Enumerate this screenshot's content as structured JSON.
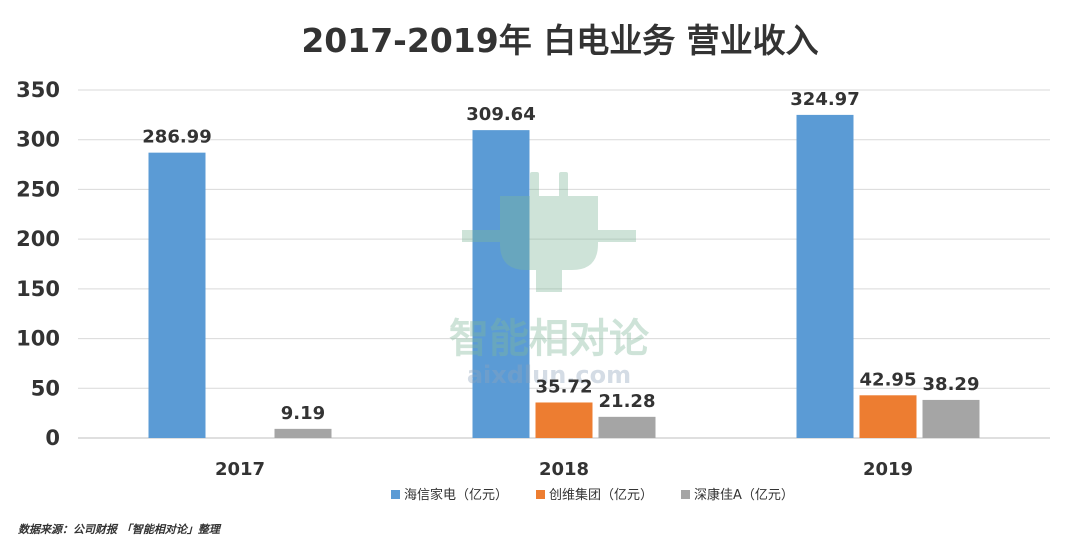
{
  "chart_data": {
    "type": "bar",
    "title": "2017-2019年 白电业务 营业收入",
    "categories": [
      "2017",
      "2018",
      "2019"
    ],
    "series": [
      {
        "name": "海信家电（亿元）",
        "color": "#5b9bd5",
        "values": [
          286.99,
          309.64,
          324.97
        ],
        "labels": [
          "286.99",
          "309.64",
          "324.97"
        ]
      },
      {
        "name": "创维集团（亿元）",
        "color": "#ed7d31",
        "values": [
          null,
          35.72,
          42.95
        ],
        "labels": [
          "",
          "35.72",
          "42.95"
        ]
      },
      {
        "name": "深康佳A（亿元）",
        "color": "#a5a5a5",
        "values": [
          9.19,
          21.28,
          38.29
        ],
        "labels": [
          "9.19",
          "21.28",
          "38.29"
        ]
      }
    ],
    "yticks": [
      "0",
      "50",
      "100",
      "150",
      "200",
      "250",
      "300",
      "350"
    ],
    "ylim": [
      0,
      350
    ],
    "grid": true,
    "legend_position": "bottom"
  },
  "watermark": {
    "brand": "智能相对论",
    "site": "aixdlun.com",
    "icon": "plug-icon"
  },
  "source_note": "数据来源：公司财报 「智能相对论」整理"
}
